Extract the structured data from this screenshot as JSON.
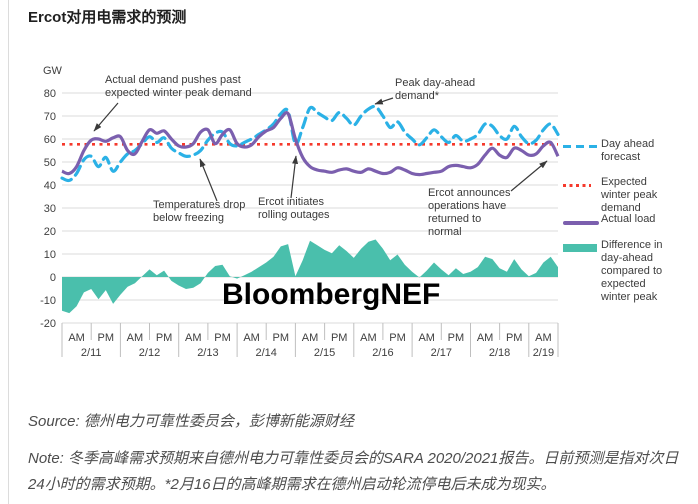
{
  "page": {
    "title": "Ercot对用电需求的预测",
    "watermark": "BloombergNEF",
    "source": "Source: 德州电力可靠性委员会，彭博新能源财经",
    "note": "Note: 冬季高峰需求预期来自德州电力可靠性委员会的SARA 2020/2021报告。日前预测是指对次日24小时的需求预期。*2月16日的高峰期需求在德州启动轮流停电后未成为现实。"
  },
  "chart": {
    "unit_label": "GW",
    "colors": {
      "forecast": "#2BB1E6",
      "expected": "#F5392C",
      "actual": "#7B5FAE",
      "diff": "#4ABFAC",
      "grid": "#DBDBDB",
      "axis": "#BFBFBF"
    },
    "annotations": [
      {
        "text": "Actual demand pushes past\nexpected winter peak demand"
      },
      {
        "text": "Temperatures drop\nbelow freezing"
      },
      {
        "text": "Ercot initiates\nrolling outages"
      },
      {
        "text": "Peak day-ahead\ndemand*"
      },
      {
        "text": "Ercot announces\noperations have\nreturned to\nnormal"
      }
    ],
    "legend": [
      {
        "label": "Day ahead\nforecast"
      },
      {
        "label": "Expected\nwinter peak\ndemand"
      },
      {
        "label": "Actual load"
      },
      {
        "label": "Difference in\nday-ahead\ncompared to\nexpected\nwinter peak"
      }
    ]
  },
  "chart_data": {
    "type": "combo-line-area",
    "title": "Ercot对用电需求的预测",
    "ylabel": "GW",
    "y_axis": {
      "min": -20,
      "max": 80,
      "ticks": [
        80,
        70,
        60,
        50,
        40,
        30,
        20,
        10,
        0,
        -10,
        -20
      ],
      "grid": true
    },
    "x_axis": {
      "half_day_cells": [
        "AM",
        "PM",
        "AM",
        "PM",
        "AM",
        "PM",
        "AM",
        "PM",
        "AM",
        "PM",
        "AM",
        "PM",
        "AM",
        "PM",
        "AM",
        "PM",
        "AM"
      ],
      "dates": [
        "2/11",
        "2/12",
        "2/13",
        "2/14",
        "2/15",
        "2/16",
        "2/17",
        "2/18",
        "2/19"
      ]
    },
    "sample_interval_hours": 3,
    "expected_winter_peak_gw": 57.7,
    "series": [
      {
        "name": "Day ahead forecast",
        "style": "dashed",
        "values": [
          43,
          42,
          45,
          51,
          52.5,
          48,
          52,
          46,
          50,
          53.5,
          55,
          58,
          61,
          58.5,
          60.5,
          56,
          54,
          52.5,
          53,
          55,
          59.5,
          62.5,
          63,
          58,
          57,
          58.5,
          60,
          62,
          64,
          66.5,
          71,
          72,
          58,
          65,
          73.5,
          71.5,
          69.5,
          68,
          71.5,
          69,
          66,
          70,
          73,
          74,
          70,
          65,
          67.5,
          63,
          60,
          57.5,
          60.5,
          64,
          61,
          58.5,
          61.5,
          59,
          60,
          62,
          66.5,
          65.5,
          61.5,
          60,
          65.5,
          61,
          58,
          59.5,
          64,
          66.5,
          62
        ]
      },
      {
        "name": "Actual load",
        "style": "solid",
        "values": [
          46,
          45,
          48,
          55,
          59.5,
          60,
          59,
          60.5,
          61,
          55,
          53.5,
          59,
          64,
          62.5,
          63.5,
          60,
          57,
          56.5,
          58,
          63,
          64,
          58,
          62,
          64,
          58,
          56.5,
          57.5,
          61,
          63.5,
          65,
          69,
          71,
          60,
          52,
          48,
          46.5,
          46,
          45.5,
          46.5,
          47,
          46,
          45.5,
          47,
          46,
          45,
          45.5,
          47.5,
          46.5,
          45,
          44.5,
          45,
          45.5,
          46,
          48,
          48.5,
          48,
          47.5,
          49,
          53,
          56,
          53,
          52,
          56,
          55,
          53,
          53.5,
          57,
          58.5,
          52.5
        ]
      },
      {
        "name": "Expected winter peak demand",
        "style": "dotted",
        "constant_value": 57.7
      },
      {
        "name": "Difference in day-ahead compared to expected winter peak",
        "style": "area",
        "derived": "day_ahead_forecast_minus_expected_winter_peak"
      }
    ]
  }
}
